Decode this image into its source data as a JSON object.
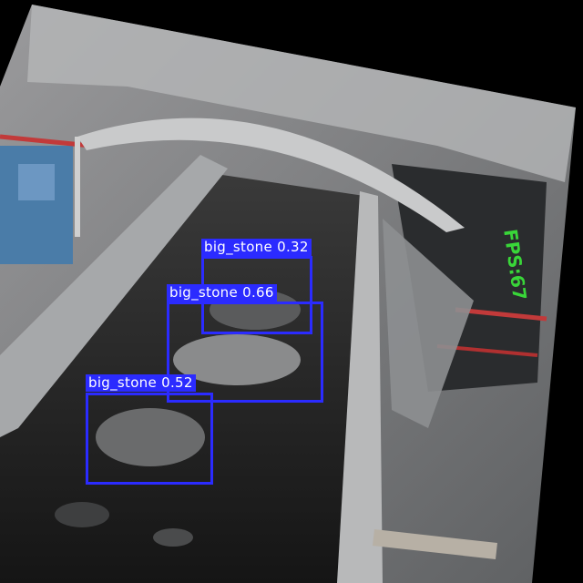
{
  "detections": [
    {
      "label": "big_stone",
      "confidence": "0.32"
    },
    {
      "label": "big_stone",
      "confidence": "0.66"
    },
    {
      "label": "big_stone",
      "confidence": "0.52"
    }
  ],
  "overlay": {
    "fps_text": "FPS:67",
    "box_color": "#2b2bff",
    "fps_color": "#39d639"
  }
}
